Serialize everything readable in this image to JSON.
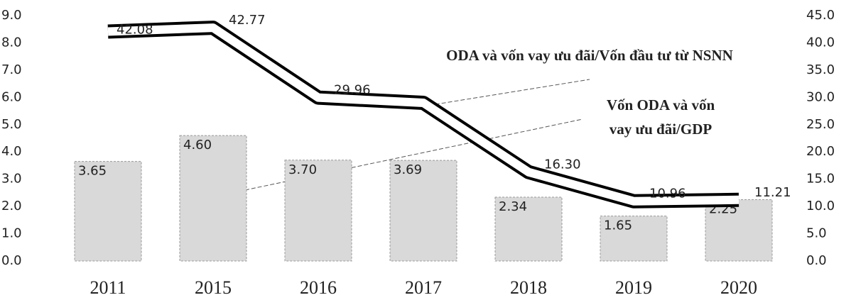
{
  "chart_data": {
    "type": "bar-line",
    "categories": [
      "2011",
      "2015",
      "2016",
      "2017",
      "2018",
      "2019",
      "2020"
    ],
    "series": [
      {
        "name": "Vốn ODA và vốn vay ưu đãi/GDP",
        "type": "bar",
        "color": "#d9d9d9",
        "values": [
          3.65,
          4.6,
          3.7,
          3.69,
          2.34,
          1.65,
          2.25
        ],
        "value_labels": [
          "3.65",
          "4.60",
          "3.70",
          "3.69",
          "2.34",
          "1.65",
          "2.25"
        ]
      },
      {
        "name": "ODA và vốn vay ưu đãi/Vốn đầu tư từ NSNN",
        "type": "line",
        "axis": "y2",
        "color": "#000000",
        "values": [
          42.08,
          42.77,
          29.96,
          29.0,
          16.3,
          10.96,
          11.21
        ],
        "value_labels": [
          "42.08",
          "42.77",
          "29.96",
          null,
          "16.30",
          "10.96",
          "11.21"
        ]
      }
    ],
    "ylim": [
      0,
      9
    ],
    "yticks": [
      {
        "value": 0,
        "label": "0.0"
      },
      {
        "value": 1,
        "label": "1.0"
      },
      {
        "value": 2,
        "label": "2.0"
      },
      {
        "value": 3,
        "label": "3.0"
      },
      {
        "value": 4,
        "label": "4.0"
      },
      {
        "value": 5,
        "label": "5.0"
      },
      {
        "value": 6,
        "label": "6.0"
      },
      {
        "value": 7,
        "label": "7.0"
      },
      {
        "value": 8,
        "label": "8.0"
      },
      {
        "value": 9,
        "label": "9.0"
      }
    ],
    "y2lim": [
      0,
      45
    ],
    "y2ticks": [
      {
        "value": 0,
        "label": "0.0"
      },
      {
        "value": 5,
        "label": "5.0"
      },
      {
        "value": 10,
        "label": "10.0"
      },
      {
        "value": 15,
        "label": "15.0"
      },
      {
        "value": 20,
        "label": "20.0"
      },
      {
        "value": 25,
        "label": "25.0"
      },
      {
        "value": 30,
        "label": "30.0"
      },
      {
        "value": 35,
        "label": "35.0"
      },
      {
        "value": 40,
        "label": "40.0"
      },
      {
        "value": 45,
        "label": "45.0"
      }
    ]
  }
}
